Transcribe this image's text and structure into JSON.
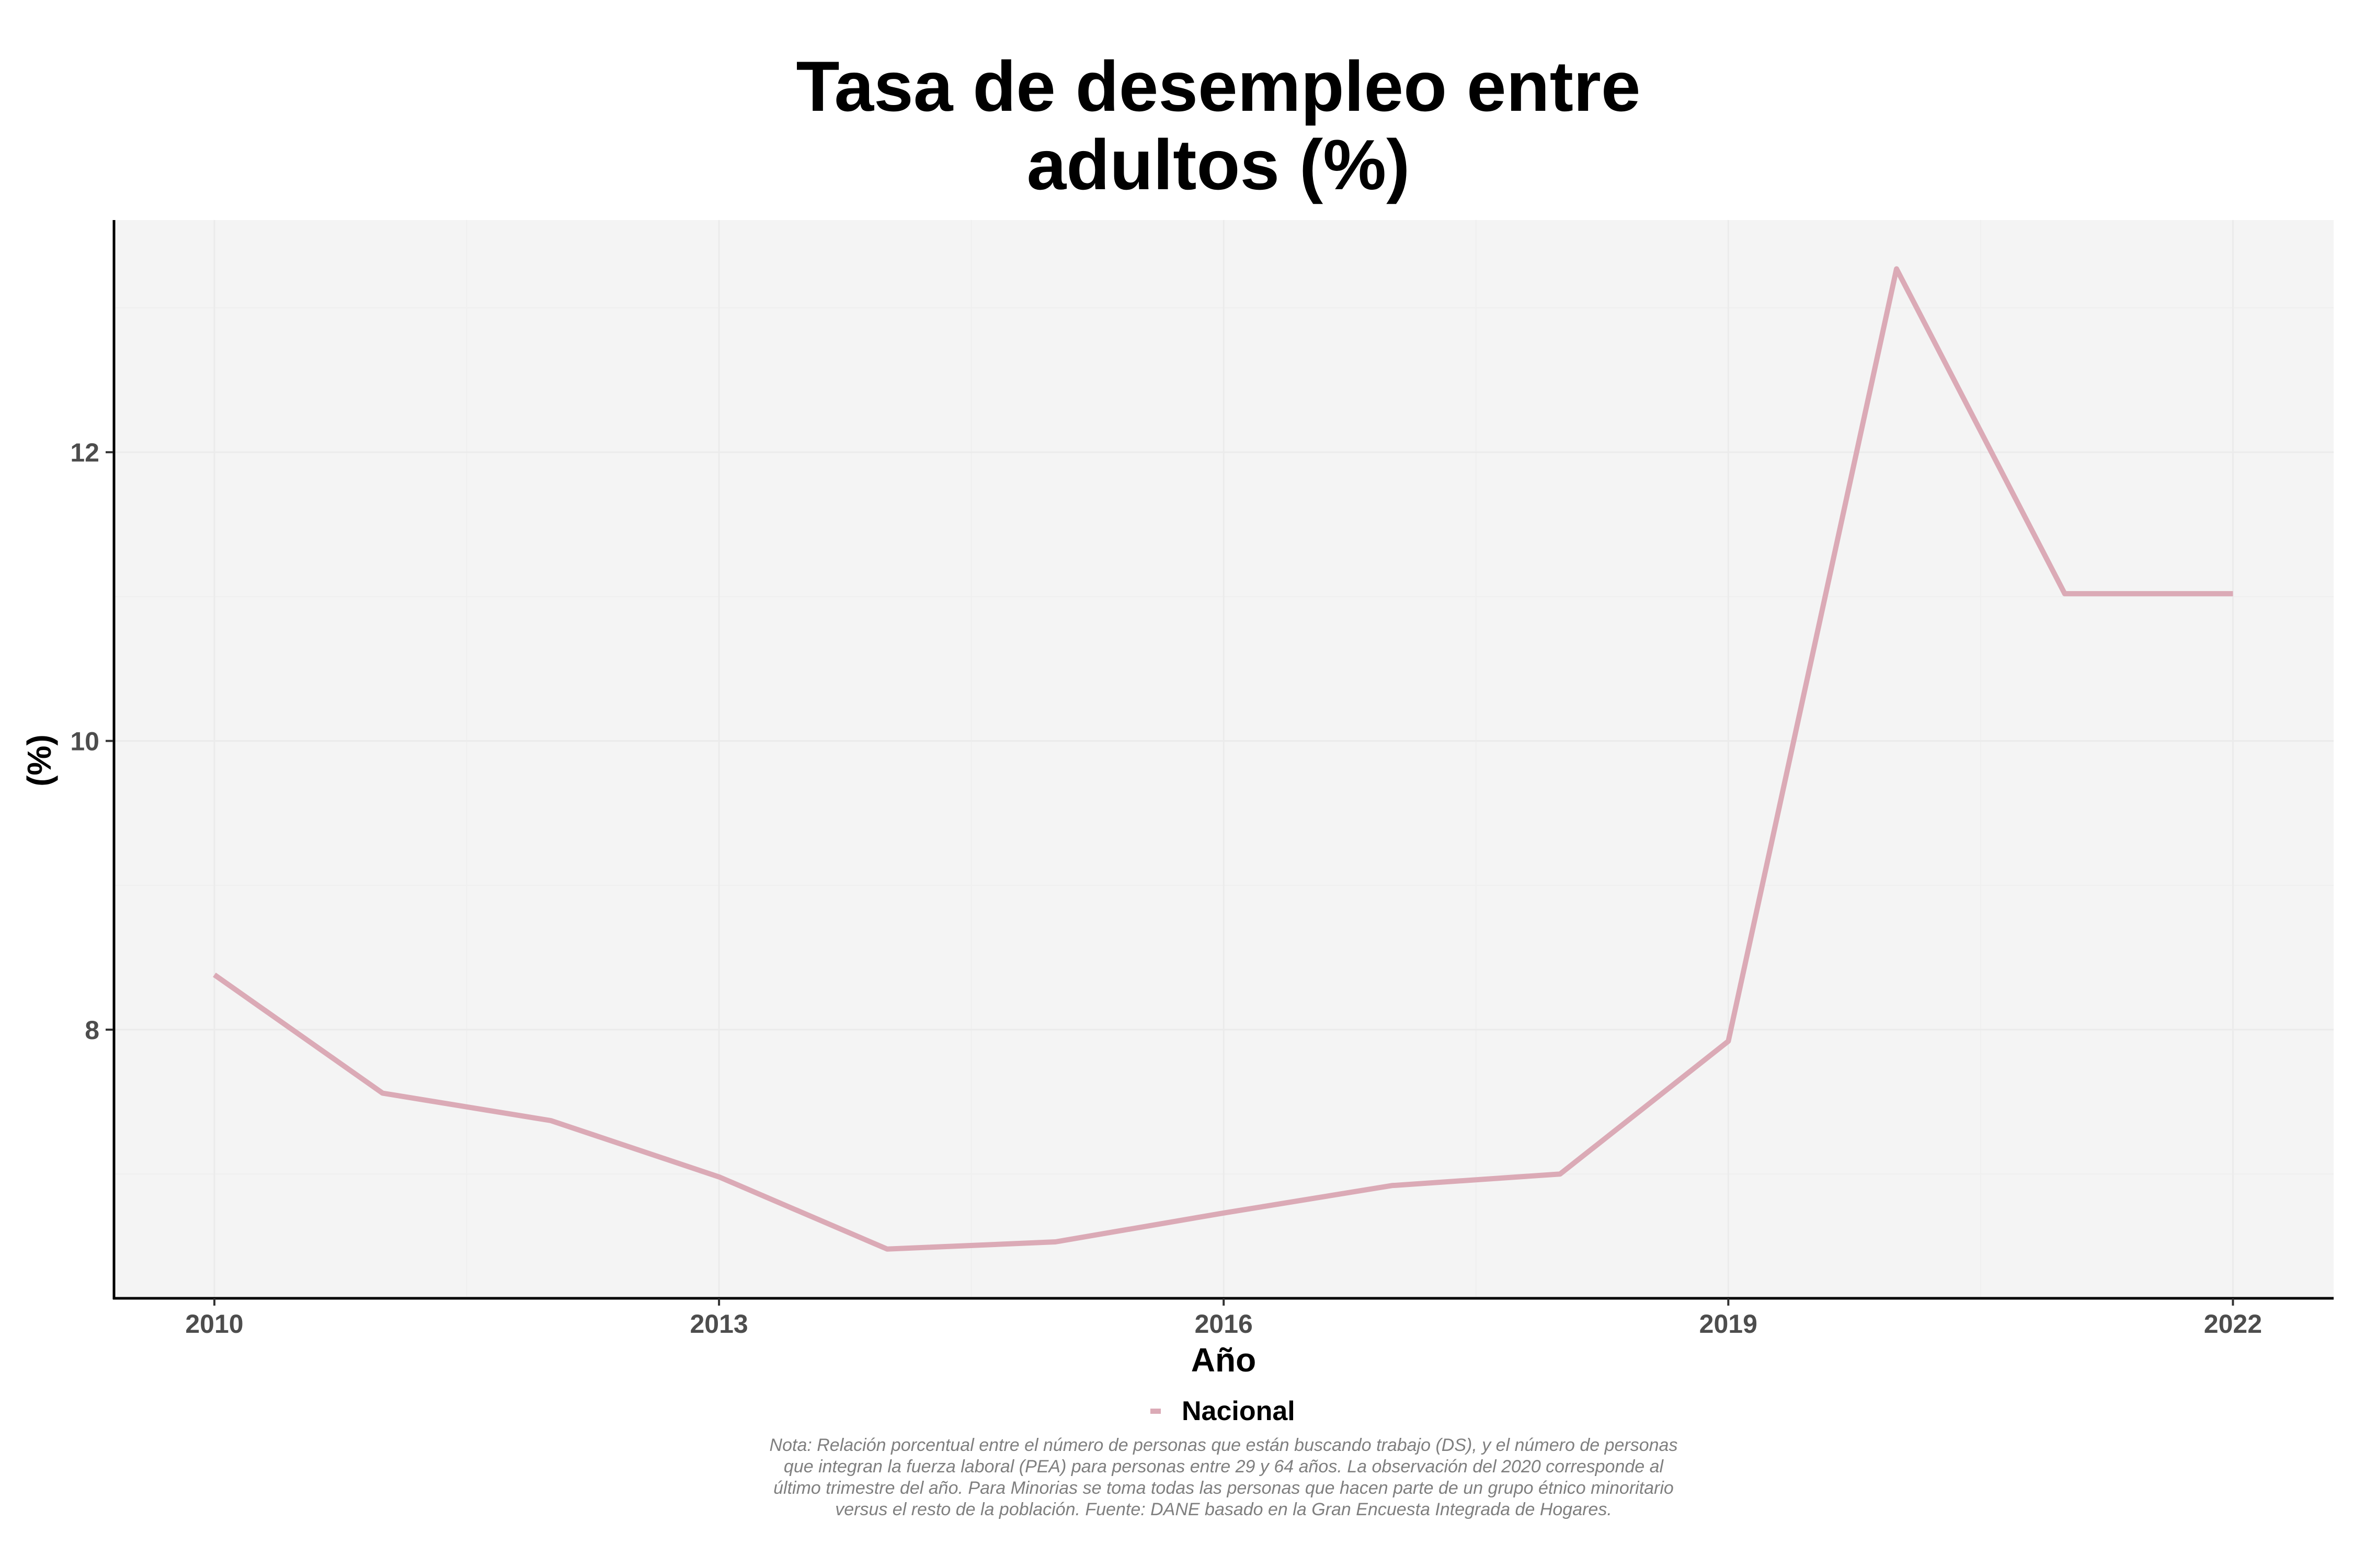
{
  "chart_data": {
    "type": "line",
    "title": "Tasa de desempleo entre adultos (%)",
    "title_lines": [
      "Tasa de desempleo entre",
      "adultos (%)"
    ],
    "xlabel": "Año",
    "ylabel": "(%)",
    "x": [
      2010,
      2011,
      2012,
      2013,
      2014,
      2015,
      2016,
      2017,
      2018,
      2019,
      2020,
      2021,
      2022
    ],
    "series": [
      {
        "name": "Nacional",
        "color": "#dbaab6",
        "values": [
          8.38,
          7.56,
          7.37,
          6.98,
          6.48,
          6.53,
          6.73,
          6.92,
          7.0,
          7.92,
          13.27,
          11.02,
          11.02
        ]
      }
    ],
    "x_ticks": [
      "2010",
      "2013",
      "2016",
      "2019",
      "2022"
    ],
    "y_ticks": [
      "8",
      "10",
      "12"
    ],
    "ylim": [
      6.2,
      13.6
    ],
    "xlim": [
      2009.4,
      2022.6
    ],
    "grid": true,
    "legend_position": "bottom",
    "panel_background": "#f4f4f4"
  },
  "note": "Nota: Relación porcentual entre el número de personas que están buscando trabajo (DS), y el número de personas que integran la fuerza laboral (PEA) para personas entre 29 y 64 años. La observación del 2020 corresponde al último trimestre del año. Para Minorias se toma todas las personas que hacen parte de un grupo étnico minoritario versus el resto de la población. Fuente: DANE basado en la Gran Encuesta Integrada de Hogares."
}
